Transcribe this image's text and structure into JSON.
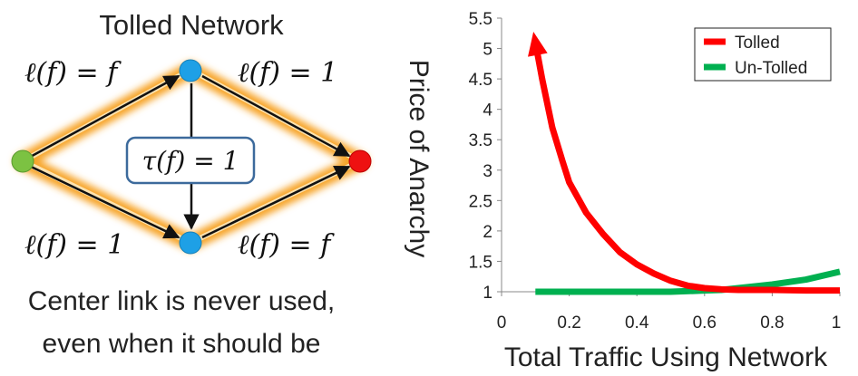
{
  "network": {
    "title": "Tolled Network",
    "edge_top_left": "ℓ(f) = f",
    "edge_top_right": "ℓ(f) = 1",
    "edge_bottom_left": "ℓ(f) = 1",
    "edge_bottom_right": "ℓ(f) = f",
    "toll_label": "τ(f) = 1",
    "caption_line1": "Center link is never used,",
    "caption_line2": "even when it should be",
    "colors": {
      "source_node": "#7cc242",
      "middle_nodes": "#1ea0e6",
      "sink_node": "#ee1111",
      "glow": "#f7a52b",
      "toll_box_border": "#3c6a9c"
    }
  },
  "chart_data": {
    "type": "line",
    "ylabel": "Price of Anarchy",
    "xlabel": "Total Traffic Using Network",
    "xlim": [
      0,
      1
    ],
    "ylim": [
      1,
      5.5
    ],
    "x_ticks": [
      "0",
      "0.2",
      "0.4",
      "0.6",
      "0.8",
      "1"
    ],
    "y_ticks": [
      "1",
      "1.5",
      "2",
      "2.5",
      "3",
      "3.5",
      "4",
      "4.5",
      "5",
      "5.5"
    ],
    "grid": false,
    "legend_position": "top-right",
    "series": [
      {
        "name": "Tolled",
        "color": "#ff0000",
        "points": [
          [
            0.1,
            5.1
          ],
          [
            0.12,
            4.5
          ],
          [
            0.15,
            3.7
          ],
          [
            0.18,
            3.15
          ],
          [
            0.2,
            2.8
          ],
          [
            0.25,
            2.3
          ],
          [
            0.3,
            1.95
          ],
          [
            0.35,
            1.65
          ],
          [
            0.4,
            1.45
          ],
          [
            0.45,
            1.3
          ],
          [
            0.5,
            1.18
          ],
          [
            0.55,
            1.1
          ],
          [
            0.6,
            1.06
          ],
          [
            0.65,
            1.04
          ],
          [
            0.7,
            1.03
          ],
          [
            0.8,
            1.03
          ],
          [
            0.9,
            1.02
          ],
          [
            1.0,
            1.02
          ]
        ],
        "arrow_at_start": true
      },
      {
        "name": "Un-Tolled",
        "color": "#00b050",
        "points": [
          [
            0.1,
            1.0
          ],
          [
            0.2,
            1.0
          ],
          [
            0.3,
            1.0
          ],
          [
            0.4,
            1.0
          ],
          [
            0.5,
            1.0
          ],
          [
            0.6,
            1.02
          ],
          [
            0.65,
            1.03
          ],
          [
            0.7,
            1.06
          ],
          [
            0.8,
            1.12
          ],
          [
            0.9,
            1.2
          ],
          [
            1.0,
            1.33
          ]
        ]
      }
    ]
  }
}
